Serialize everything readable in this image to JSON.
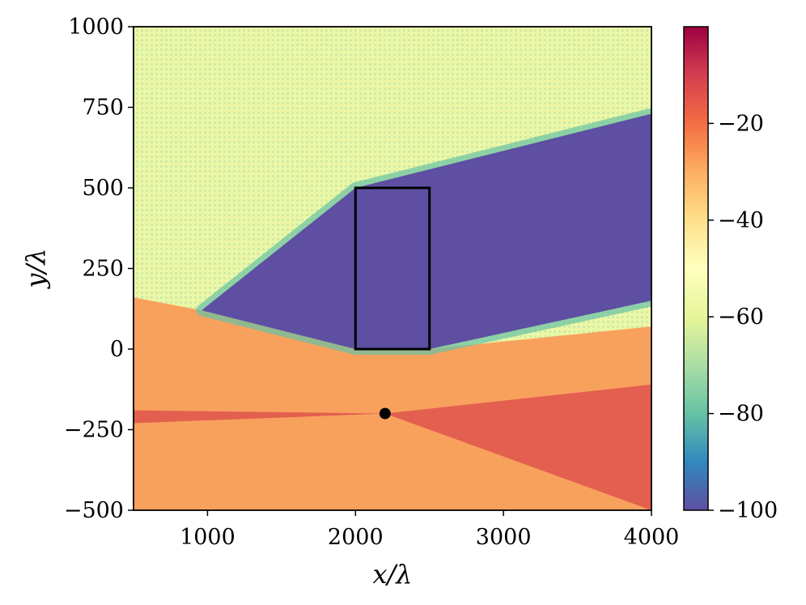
{
  "chart_data": {
    "type": "heatmap",
    "title": "",
    "xlabel": "x/λ",
    "ylabel": "y/λ",
    "xlim": [
      500,
      4000
    ],
    "ylim": [
      -500,
      1000
    ],
    "xticks": [
      1000,
      2000,
      3000,
      4000
    ],
    "xtick_labels": [
      "1000",
      "2000",
      "3000",
      "4000"
    ],
    "yticks": [
      1000,
      750,
      500,
      250,
      0,
      -250,
      -500
    ],
    "ytick_labels": [
      "1000",
      "750",
      "500",
      "250",
      "0",
      "−250",
      "−500"
    ],
    "colorbar": {
      "colormap": "Spectral_r",
      "range": [
        -100,
        0
      ],
      "ticks": [
        -20,
        -40,
        -60,
        -80,
        -100
      ],
      "tick_labels": [
        "−20",
        "−40",
        "−60",
        "−80",
        "−100"
      ],
      "stops": [
        "#5e4fa2",
        "#3288bd",
        "#66c2a5",
        "#abdda4",
        "#e6f598",
        "#ffffbf",
        "#fee08b",
        "#fdae61",
        "#f46d43",
        "#d53e4f",
        "#9e0142"
      ]
    },
    "obstacle_rectangle": {
      "x": [
        2000,
        2500
      ],
      "y": [
        0,
        500
      ]
    },
    "source_point": {
      "x": 2200,
      "y": -200
    },
    "shadow_region_polygon": [
      [
        960,
        120
      ],
      [
        2000,
        500
      ],
      [
        4000,
        730
      ],
      [
        4000,
        150
      ],
      [
        2500,
        0
      ],
      [
        2000,
        0
      ]
    ],
    "field_regions": {
      "shadow_level": -100,
      "upper_interference_level": -55,
      "lower_wedge_level": -25,
      "main_beam_level": -15
    },
    "colors": {
      "shadow": "#5e4fa2",
      "upper_field": "#ecf7a6",
      "lower_field": "#f8a15d",
      "beam": "#dc4a4b"
    }
  }
}
